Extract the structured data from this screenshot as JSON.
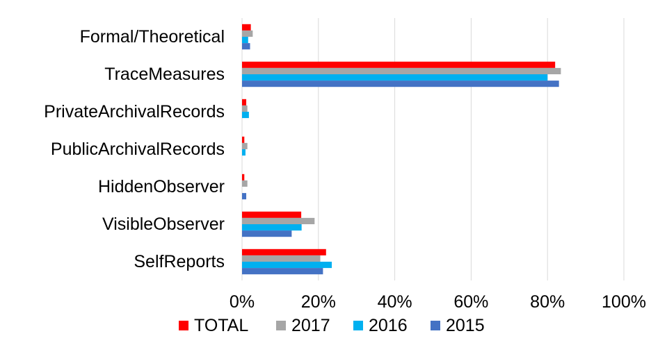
{
  "chart_data": {
    "type": "bar",
    "orientation": "horizontal",
    "title": "",
    "xlabel": "",
    "ylabel": "",
    "xlim": [
      0,
      100
    ],
    "x_ticks": [
      0,
      20,
      40,
      60,
      80,
      100
    ],
    "x_tick_labels": [
      "0%",
      "20%",
      "40%",
      "60%",
      "80%",
      "100%"
    ],
    "grid": "vertical",
    "legend": "bottom",
    "categories": [
      "Formal/Theoretical",
      "TraceMeasures",
      "PrivateArchivalRecords",
      "PublicArchivalRecords",
      "HiddenObserver",
      "VisibleObserver",
      "SelfReports"
    ],
    "series": [
      {
        "name": "TOTAL",
        "color": "#ff0000",
        "values": [
          2.3,
          82,
          1.1,
          0.6,
          0.6,
          15.5,
          22
        ]
      },
      {
        "name": "2017",
        "color": "#a6a6a6",
        "values": [
          2.8,
          83.5,
          1.4,
          1.4,
          1.4,
          19,
          20.5
        ]
      },
      {
        "name": "2016",
        "color": "#00b0f0",
        "values": [
          1.6,
          80,
          1.8,
          0.9,
          0,
          15.6,
          23.5
        ]
      },
      {
        "name": "2015",
        "color": "#4472c4",
        "values": [
          2.1,
          83,
          0,
          0,
          1.1,
          13,
          21.2
        ]
      }
    ]
  }
}
